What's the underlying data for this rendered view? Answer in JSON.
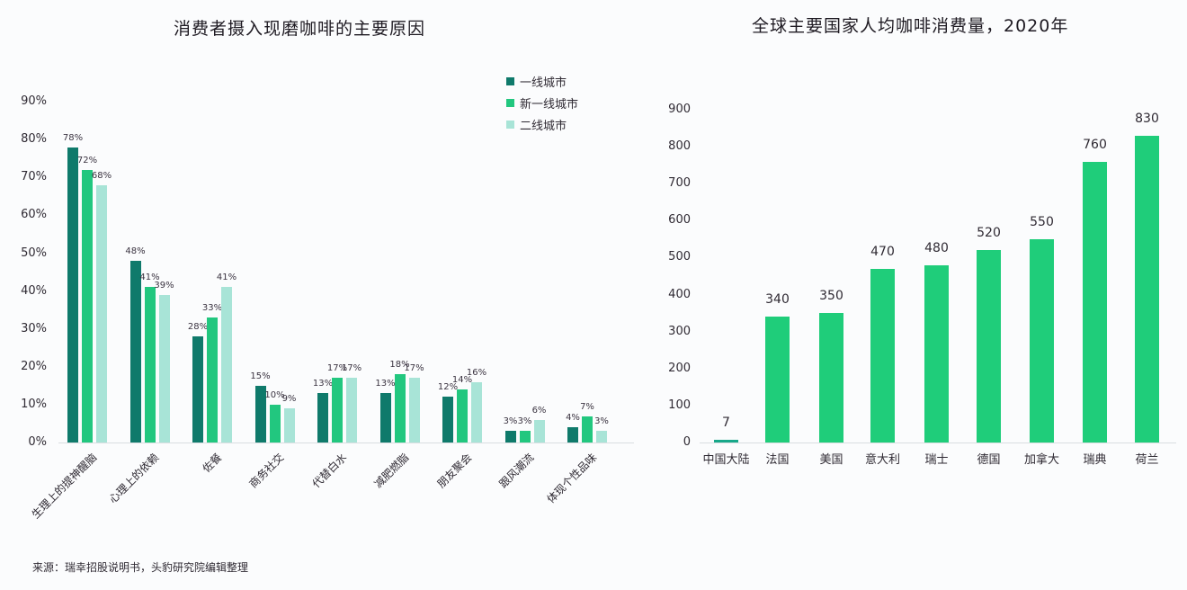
{
  "chart_data": [
    {
      "type": "bar",
      "title": "消费者摄入现磨咖啡的主要原因",
      "xlabel": "",
      "ylabel": "",
      "ylim": [
        0,
        90
      ],
      "yticks": [
        "0%",
        "10%",
        "20%",
        "30%",
        "40%",
        "50%",
        "60%",
        "70%",
        "80%",
        "90%"
      ],
      "grid": false,
      "legend_position": "top-right",
      "categories": [
        "生理上的提神醒脑",
        "心理上的依赖",
        "佐餐",
        "商务社交",
        "代替白水",
        "减肥燃脂",
        "朋友聚会",
        "跟风潮流",
        "体现个性品味"
      ],
      "series": [
        {
          "name": "一线城市",
          "color": "#0f7a6b",
          "values": [
            78,
            48,
            28,
            15,
            13,
            13,
            12,
            3,
            4
          ]
        },
        {
          "name": "新一线城市",
          "color": "#22c77f",
          "values": [
            72,
            41,
            33,
            10,
            17,
            18,
            14,
            3,
            7
          ]
        },
        {
          "name": "二线城市",
          "color": "#a8e4d7",
          "values": [
            68,
            39,
            41,
            9,
            17,
            17,
            16,
            6,
            3
          ]
        }
      ]
    },
    {
      "type": "bar",
      "title": "全球主要国家人均咖啡消费量，2020年",
      "xlabel": "",
      "ylabel": "",
      "ylim": [
        0,
        900
      ],
      "yticks": [
        "0",
        "100",
        "200",
        "300",
        "400",
        "500",
        "600",
        "700",
        "800",
        "900"
      ],
      "grid": false,
      "categories": [
        "中国大陆",
        "法国",
        "美国",
        "意大利",
        "瑞士",
        "德国",
        "加拿大",
        "瑞典",
        "荷兰"
      ],
      "values": [
        7,
        340,
        350,
        470,
        480,
        520,
        550,
        760,
        830
      ],
      "color": "#1fcd7a",
      "highlight_color": "#18a88a"
    }
  ],
  "source": "来源：瑞幸招股说明书，头豹研究院编辑整理"
}
